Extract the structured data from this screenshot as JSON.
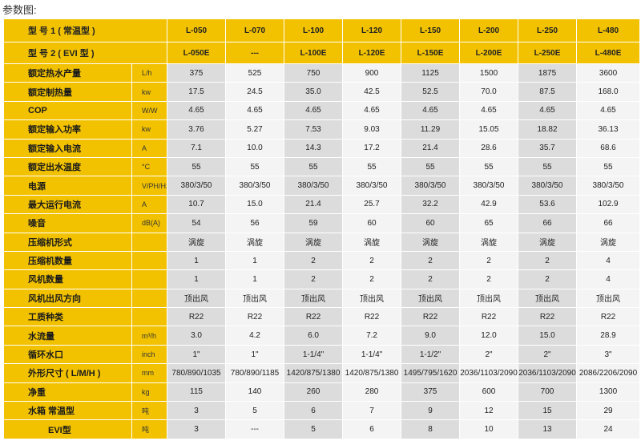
{
  "caption": "参数图:",
  "header1": {
    "label": "型 号 1 ( 常温型 )",
    "models": [
      "L-050",
      "L-070",
      "L-100",
      "L-120",
      "L-150",
      "L-200",
      "L-250",
      "L-480"
    ]
  },
  "header2": {
    "label": "型 号 2 ( EVI 型 )",
    "models": [
      "L-050E",
      "---",
      "L-100E",
      "L-120E",
      "L-150E",
      "L-200E",
      "L-250E",
      "L-480E"
    ]
  },
  "rows": [
    {
      "name": "额定热水产量",
      "unit": "L/h",
      "values": [
        "375",
        "525",
        "750",
        "900",
        "1125",
        "1500",
        "1875",
        "3600"
      ]
    },
    {
      "name": "额定制热量",
      "unit": "kw",
      "values": [
        "17.5",
        "24.5",
        "35.0",
        "42.5",
        "52.5",
        "70.0",
        "87.5",
        "168.0"
      ]
    },
    {
      "name": "COP",
      "unit": "W/W",
      "values": [
        "4.65",
        "4.65",
        "4.65",
        "4.65",
        "4.65",
        "4.65",
        "4.65",
        "4.65"
      ]
    },
    {
      "name": "额定输入功率",
      "unit": "kw",
      "values": [
        "3.76",
        "5.27",
        "7.53",
        "9.03",
        "11.29",
        "15.05",
        "18.82",
        "36.13"
      ]
    },
    {
      "name": "额定输入电流",
      "unit": "A",
      "values": [
        "7.1",
        "10.0",
        "14.3",
        "17.2",
        "21.4",
        "28.6",
        "35.7",
        "68.6"
      ]
    },
    {
      "name": "额定出水温度",
      "unit": "°C",
      "values": [
        "55",
        "55",
        "55",
        "55",
        "55",
        "55",
        "55",
        "55"
      ]
    },
    {
      "name": "电源",
      "unit": "V/PH/Hz",
      "values": [
        "380/3/50",
        "380/3/50",
        "380/3/50",
        "380/3/50",
        "380/3/50",
        "380/3/50",
        "380/3/50",
        "380/3/50"
      ]
    },
    {
      "name": "最大运行电流",
      "unit": "A",
      "values": [
        "10.7",
        "15.0",
        "21.4",
        "25.7",
        "32.2",
        "42.9",
        "53.6",
        "102.9"
      ]
    },
    {
      "name": "噪音",
      "unit": "dB(A)",
      "values": [
        "54",
        "56",
        "59",
        "60",
        "60",
        "65",
        "66",
        "66"
      ]
    },
    {
      "name": "压缩机形式",
      "unit": "",
      "values": [
        "涡旋",
        "涡旋",
        "涡旋",
        "涡旋",
        "涡旋",
        "涡旋",
        "涡旋",
        "涡旋"
      ]
    },
    {
      "name": "压缩机数量",
      "unit": "",
      "values": [
        "1",
        "1",
        "2",
        "2",
        "2",
        "2",
        "2",
        "4"
      ]
    },
    {
      "name": "风机数量",
      "unit": "",
      "values": [
        "1",
        "1",
        "2",
        "2",
        "2",
        "2",
        "2",
        "4"
      ]
    },
    {
      "name": "风机出风方向",
      "unit": "",
      "values": [
        "顶出风",
        "顶出风",
        "顶出风",
        "顶出风",
        "顶出风",
        "顶出风",
        "顶出风",
        "顶出风"
      ]
    },
    {
      "name": "工质种类",
      "unit": "",
      "values": [
        "R22",
        "R22",
        "R22",
        "R22",
        "R22",
        "R22",
        "R22",
        "R22"
      ]
    },
    {
      "name": "水流量",
      "unit": "m³/h",
      "values": [
        "3.0",
        "4.2",
        "6.0",
        "7.2",
        "9.0",
        "12.0",
        "15.0",
        "28.9"
      ]
    },
    {
      "name": "循环水口",
      "unit": "inch",
      "values": [
        "1\"",
        "1\"",
        "1-1/4\"",
        "1-1/4\"",
        "1-1/2\"",
        "2\"",
        "2\"",
        "3\""
      ]
    },
    {
      "name": "外形尺寸 ( L/M/H )",
      "unit": "mm",
      "values": [
        "780/890/1035",
        "780/890/1185",
        "1420/875/1380",
        "1420/875/1380",
        "1495/795/1620",
        "2036/1103/2090",
        "2036/1103/2090",
        "2086/2206/2090"
      ]
    },
    {
      "name": "净重",
      "unit": "kg",
      "values": [
        "115",
        "140",
        "260",
        "280",
        "375",
        "600",
        "700",
        "1300"
      ]
    },
    {
      "name": "水箱    常温型",
      "unit": "吨",
      "values": [
        "3",
        "5",
        "6",
        "7",
        "9",
        "12",
        "15",
        "29"
      ]
    },
    {
      "name": "EVI型",
      "unit": "吨",
      "values": [
        "3",
        "---",
        "5",
        "6",
        "8",
        "10",
        "13",
        "24"
      ],
      "indent": true
    }
  ]
}
